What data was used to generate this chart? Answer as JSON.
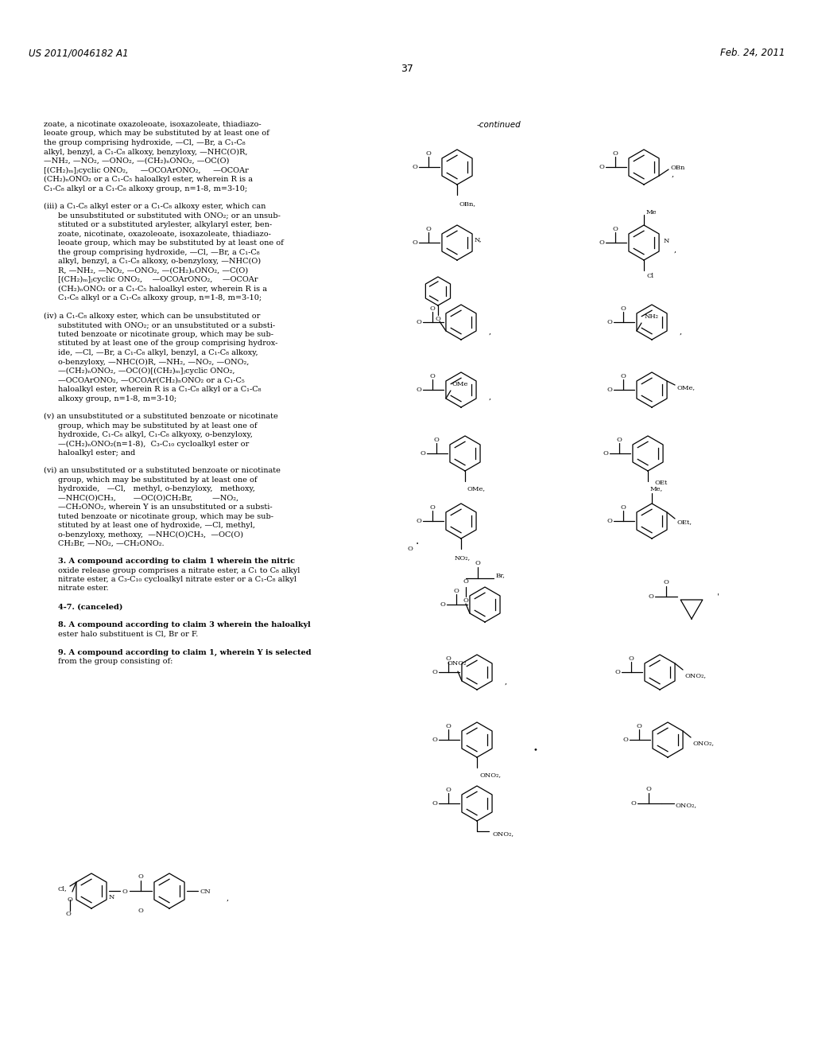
{
  "background_color": "#ffffff",
  "page_width": 10.24,
  "page_height": 13.2,
  "header_left": "US 2011/0046182 A1",
  "header_right": "Feb. 24, 2011",
  "page_number": "37",
  "continued_label": "-continued"
}
